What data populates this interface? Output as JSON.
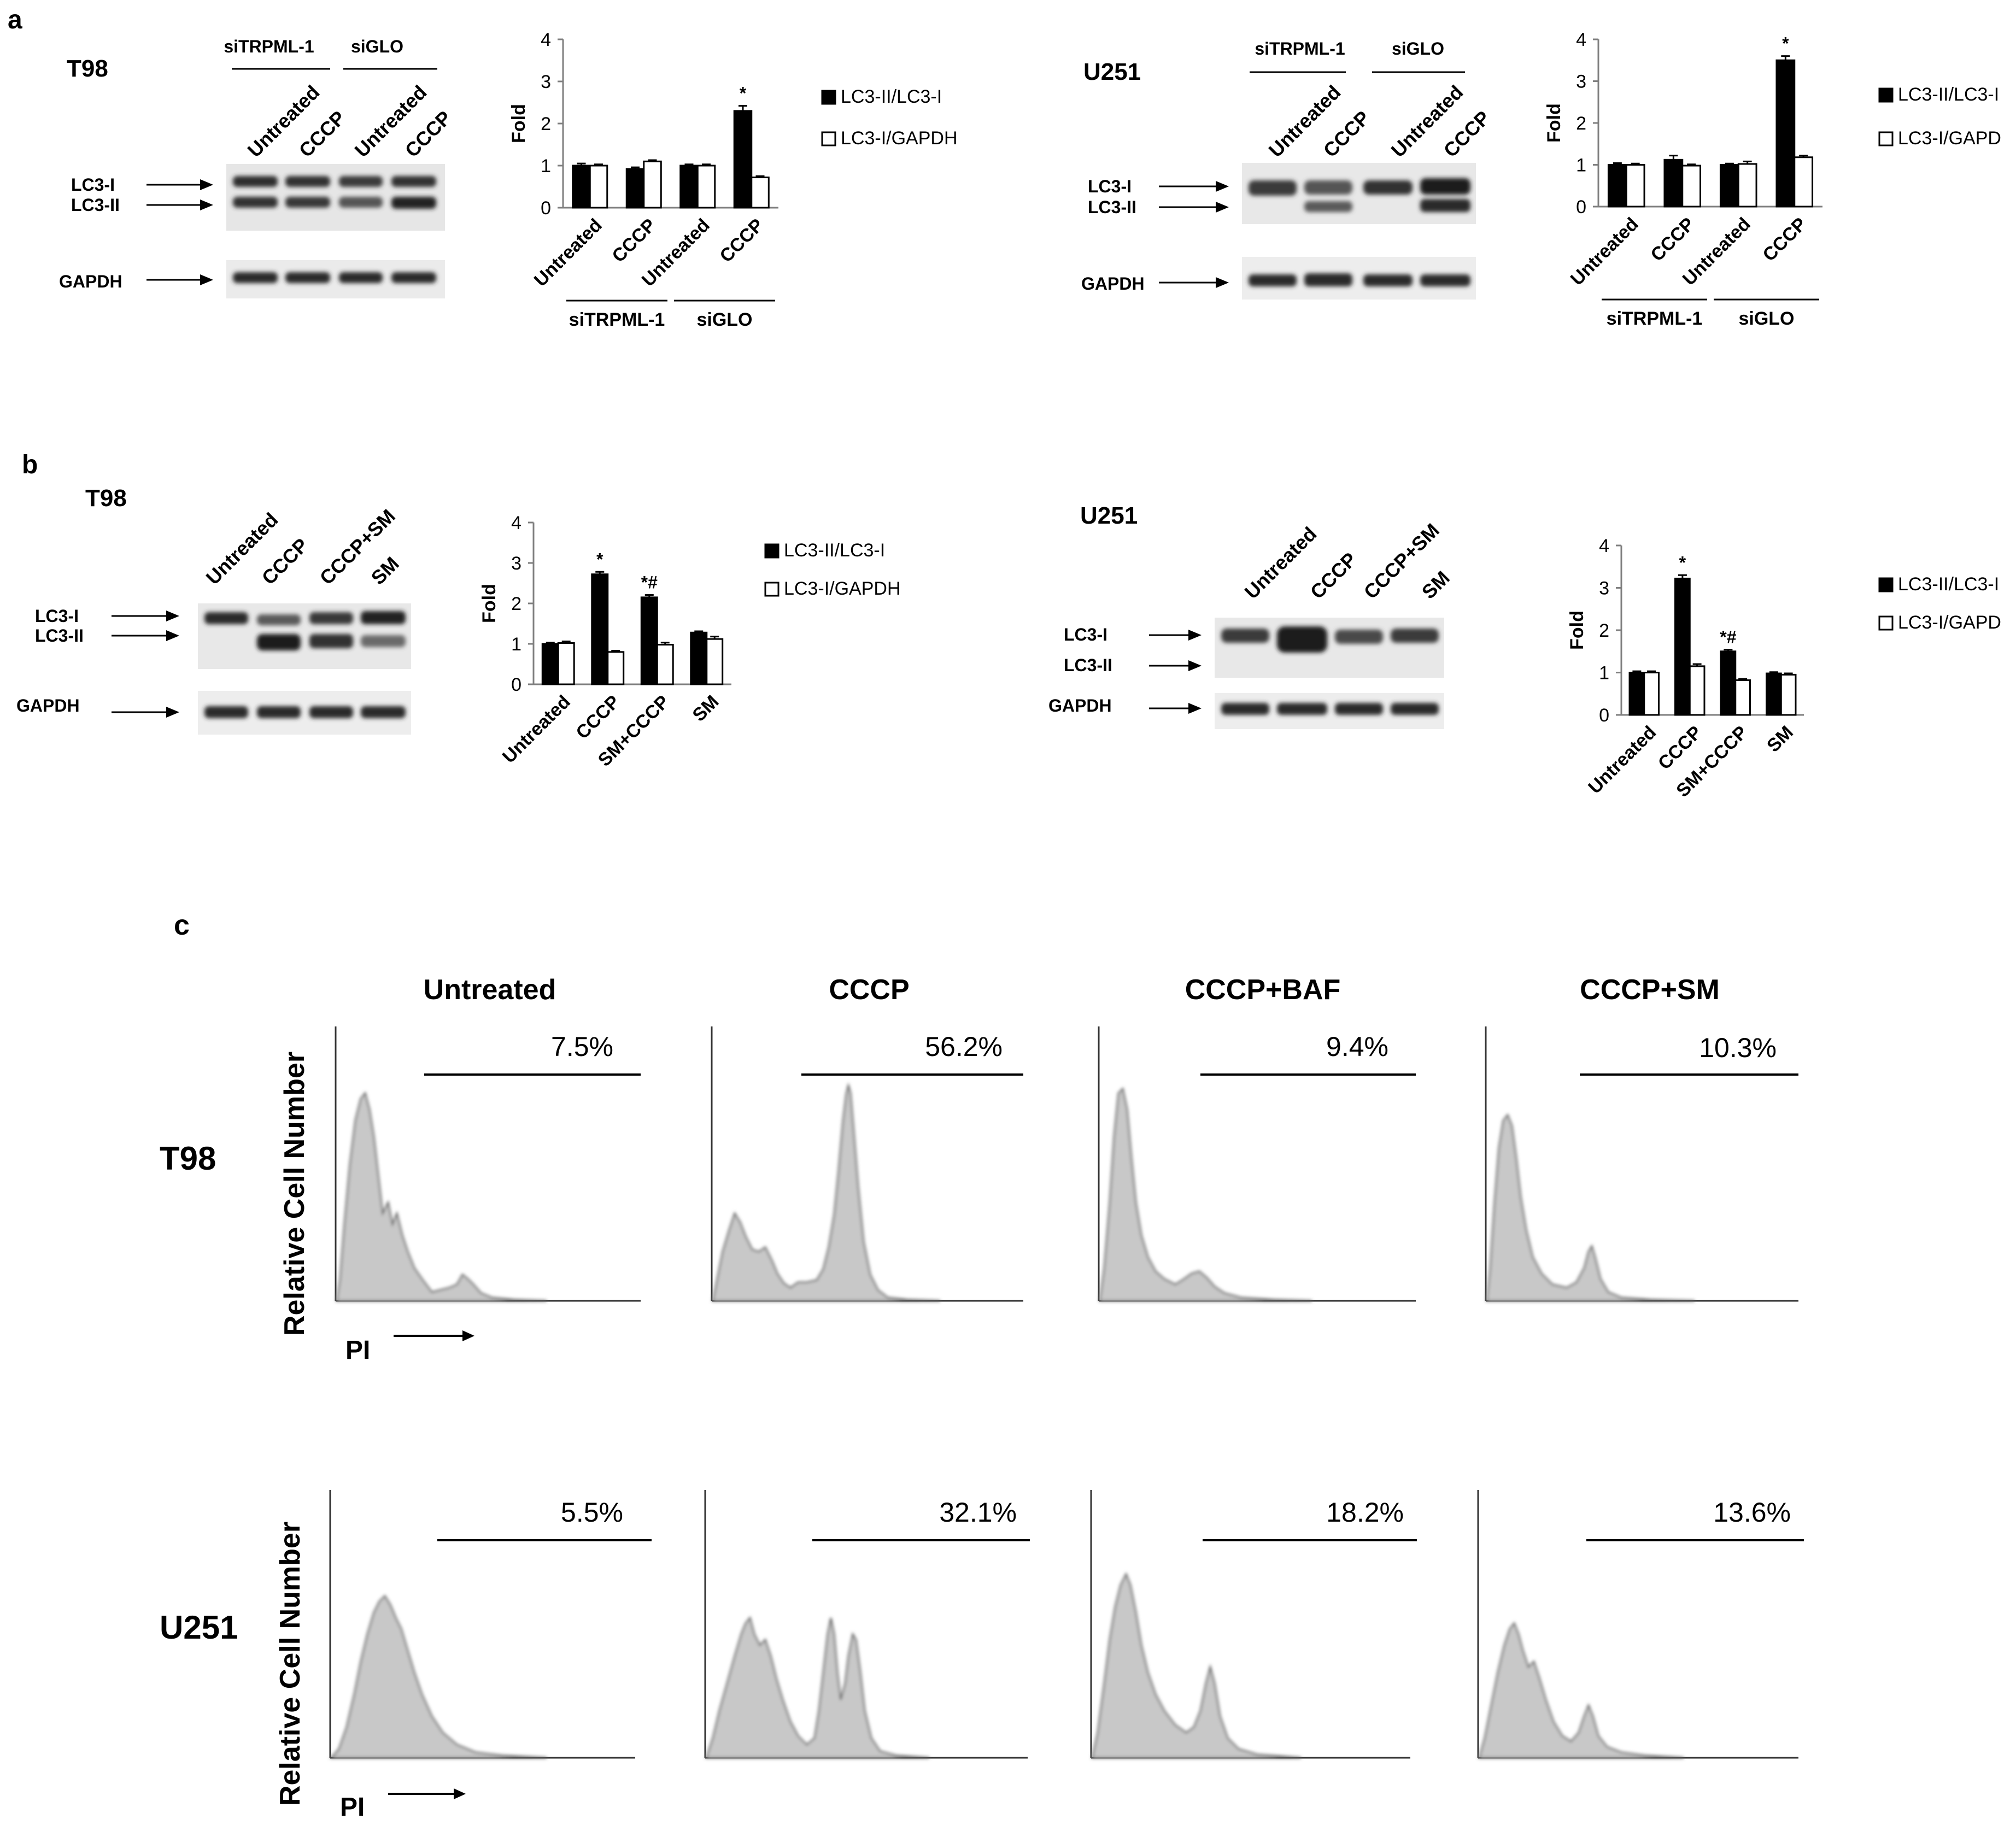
{
  "figure": {
    "panel_a": {
      "letter": "a",
      "t98": {
        "cell_line": "T98",
        "blot": {
          "group_labels": [
            "siTRPML-1",
            "siGLO"
          ],
          "lane_labels": [
            "Untreated",
            "CCCP",
            "Untreated",
            "CCCP"
          ],
          "band_labels": [
            "LC3-I",
            "LC3-II",
            "GAPDH"
          ]
        }
      },
      "u251": {
        "cell_line": "U251",
        "blot": {
          "group_labels": [
            "siTRPML-1",
            "siGLO"
          ],
          "lane_labels": [
            "Untreated",
            "CCCP",
            "Untreated",
            "CCCP"
          ],
          "band_labels": [
            "LC3-I",
            "LC3-II",
            "GAPDH"
          ]
        }
      }
    },
    "panel_b": {
      "letter": "b",
      "t98": {
        "cell_line": "T98",
        "blot": {
          "lane_labels": [
            "Untreated",
            "CCCP",
            "CCCP+SM",
            "SM"
          ],
          "band_labels": [
            "LC3-I",
            "LC3-II",
            "GAPDH"
          ]
        }
      },
      "u251": {
        "cell_line": "U251",
        "blot": {
          "lane_labels": [
            "Untreated",
            "CCCP",
            "CCCP+SM",
            "SM"
          ],
          "band_labels": [
            "LC3-I",
            "LC3-II",
            "GAPDH"
          ]
        }
      }
    },
    "panel_c": {
      "letter": "c",
      "conditions": [
        "Untreated",
        "CCCP",
        "CCCP+BAF",
        "CCCP+SM"
      ],
      "y_axis_label": "Relative Cell Number",
      "x_axis_label": "PI",
      "rows": [
        {
          "cell_line": "T98",
          "percentages": [
            "7.5%",
            "56.2%",
            "9.4%",
            "10.3%"
          ]
        },
        {
          "cell_line": "U251",
          "percentages": [
            "5.5%",
            "32.1%",
            "18.2%",
            "13.6%"
          ]
        }
      ]
    }
  },
  "chart_data": [
    {
      "id": "a-t98",
      "type": "bar",
      "title": "",
      "xlabel": "",
      "ylabel": "Fold",
      "ylim": [
        0,
        4
      ],
      "yticks": [
        0,
        1,
        2,
        3,
        4
      ],
      "categories": [
        "Untreated",
        "CCCP",
        "Untreated",
        "CCCP"
      ],
      "groups": [
        {
          "label": "siTRPML-1",
          "span": [
            0,
            1
          ]
        },
        {
          "label": "siGLO",
          "span": [
            2,
            3
          ]
        }
      ],
      "series": [
        {
          "name": "LC3-II/LC3-I",
          "color": "#000000",
          "values": [
            1.0,
            0.92,
            1.0,
            2.3
          ],
          "errors": [
            0.05,
            0.04,
            0.03,
            0.12
          ]
        },
        {
          "name": "LC3-I/GAPDH",
          "color": "#ffffff",
          "values": [
            1.0,
            1.1,
            1.0,
            0.72
          ],
          "errors": [
            0.03,
            0.03,
            0.03,
            0.03
          ]
        }
      ],
      "annotations": [
        {
          "category": 3,
          "series": 0,
          "text": "*"
        }
      ]
    },
    {
      "id": "a-u251",
      "type": "bar",
      "title": "",
      "xlabel": "",
      "ylabel": "Fold",
      "ylim": [
        0,
        4
      ],
      "yticks": [
        0,
        1,
        2,
        3,
        4
      ],
      "categories": [
        "Untreated",
        "CCCP",
        "Untreated",
        "CCCP"
      ],
      "groups": [
        {
          "label": "siTRPML-1",
          "span": [
            0,
            1
          ]
        },
        {
          "label": "siGLO",
          "span": [
            2,
            3
          ]
        }
      ],
      "series": [
        {
          "name": "LC3-II/LC3-I",
          "color": "#000000",
          "values": [
            1.0,
            1.12,
            1.0,
            3.5
          ],
          "errors": [
            0.04,
            0.1,
            0.03,
            0.1
          ]
        },
        {
          "name": "LC3-I/GAPD",
          "color": "#ffffff",
          "values": [
            1.0,
            0.98,
            1.02,
            1.18
          ],
          "errors": [
            0.03,
            0.03,
            0.06,
            0.04
          ]
        }
      ],
      "annotations": [
        {
          "category": 3,
          "series": 0,
          "text": "*"
        }
      ]
    },
    {
      "id": "b-t98",
      "type": "bar",
      "title": "",
      "xlabel": "",
      "ylabel": "Fold",
      "ylim": [
        0,
        4
      ],
      "yticks": [
        0,
        1,
        2,
        3,
        4
      ],
      "categories": [
        "Untreated",
        "CCCP",
        "SM+CCCP",
        "SM"
      ],
      "series": [
        {
          "name": "LC3-II/LC3-I",
          "color": "#000000",
          "values": [
            1.0,
            2.72,
            2.15,
            1.28
          ],
          "errors": [
            0.03,
            0.06,
            0.06,
            0.03
          ]
        },
        {
          "name": "LC3-I/GAPDH",
          "color": "#ffffff",
          "values": [
            1.02,
            0.8,
            0.98,
            1.12
          ],
          "errors": [
            0.04,
            0.03,
            0.05,
            0.06
          ]
        }
      ],
      "annotations": [
        {
          "category": 1,
          "series": 0,
          "text": "*"
        },
        {
          "category": 2,
          "series": 0,
          "text": "*#"
        }
      ]
    },
    {
      "id": "b-u251",
      "type": "bar",
      "title": "",
      "xlabel": "",
      "ylabel": "Fold",
      "ylim": [
        0,
        4
      ],
      "yticks": [
        0,
        1,
        2,
        3,
        4
      ],
      "categories": [
        "Untreated",
        "CCCP",
        "SM+CCCP",
        "SM"
      ],
      "series": [
        {
          "name": "LC3-II/LC3-I",
          "color": "#000000",
          "values": [
            1.0,
            3.22,
            1.5,
            0.98
          ],
          "errors": [
            0.03,
            0.08,
            0.04,
            0.03
          ]
        },
        {
          "name": "LC3-I/GAPD",
          "color": "#ffffff",
          "values": [
            1.0,
            1.15,
            0.82,
            0.95
          ],
          "errors": [
            0.03,
            0.05,
            0.03,
            0.03
          ]
        }
      ],
      "annotations": [
        {
          "category": 1,
          "series": 0,
          "text": "*"
        },
        {
          "category": 2,
          "series": 0,
          "text": "*#"
        }
      ]
    }
  ]
}
